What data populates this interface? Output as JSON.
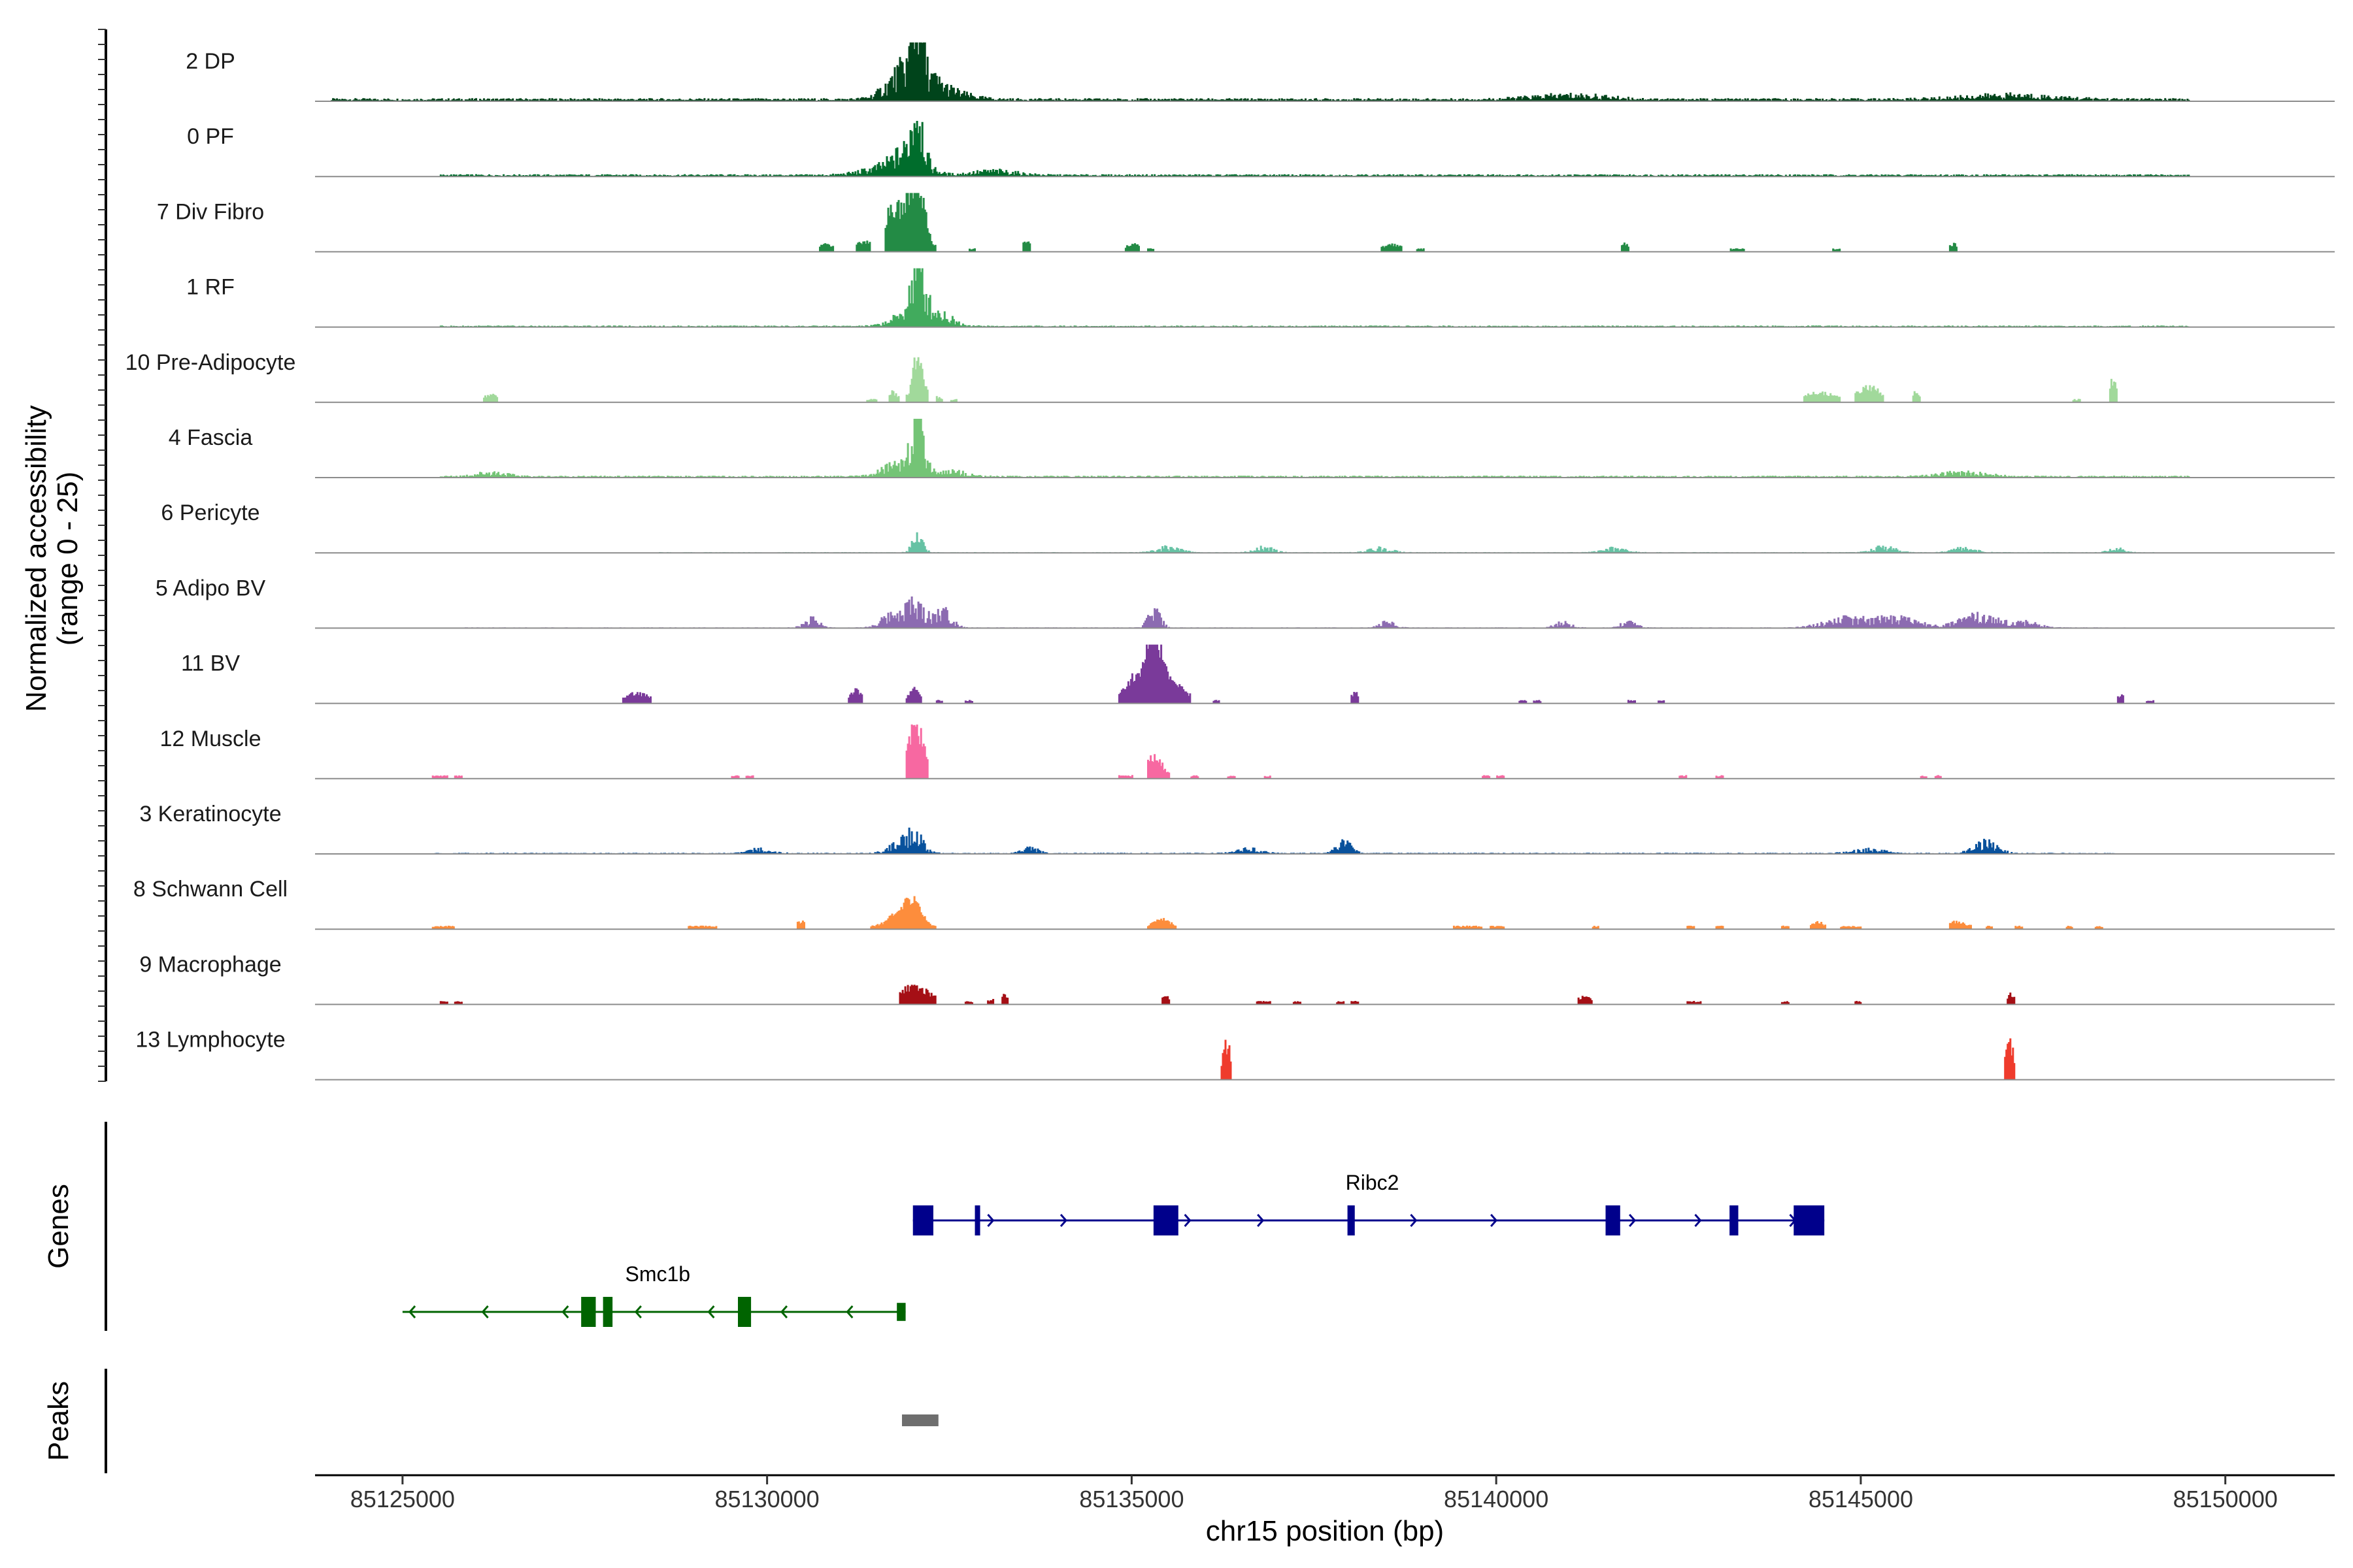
{
  "chart_data": {
    "type": "area",
    "title": "",
    "chromosome": "chr15",
    "xlabel": "chr15 position (bp)",
    "ylabel_line1": "Normalized accessibility",
    "ylabel_line2": "(range 0 - 25)",
    "ylim": [
      0,
      25
    ],
    "xlim": [
      85123800,
      85151500
    ],
    "x_ticks": [
      85125000,
      85130000,
      85135000,
      85140000,
      85145000,
      85150000
    ],
    "x_tick_labels": [
      "85125000",
      "85130000",
      "85135000",
      "85140000",
      "85145000",
      "85150000"
    ],
    "panel_titles": {
      "genes": "Genes",
      "peaks": "Peaks"
    },
    "series": [
      {
        "name": "2 DP",
        "color": "#00441b",
        "style": "continuous",
        "range": [
          85124000,
          85149500
        ],
        "baseline": 0.8,
        "peaks": [
          [
            85132050,
            25,
            60
          ],
          [
            85131950,
            12,
            250
          ],
          [
            85132400,
            3,
            300
          ],
          [
            85141000,
            1.5,
            500
          ],
          [
            85147000,
            1.5,
            600
          ]
        ]
      },
      {
        "name": "0 PF",
        "color": "#006d2c",
        "style": "continuous",
        "range": [
          85125500,
          85149500
        ],
        "baseline": 0.6,
        "peaks": [
          [
            85132050,
            20,
            70
          ],
          [
            85131950,
            8,
            200
          ],
          [
            85131600,
            2.5,
            300
          ],
          [
            85133100,
            1.5,
            300
          ]
        ]
      },
      {
        "name": "7 Div Fibro",
        "color": "#238b45",
        "style": "segments",
        "segments": [
          [
            85130700,
            85130900
          ],
          [
            85131200,
            85131400
          ],
          [
            85131600,
            85132300
          ],
          [
            85132750,
            85132850
          ],
          [
            85133500,
            85133600
          ],
          [
            85134900,
            85135100
          ],
          [
            85135200,
            85135300
          ],
          [
            85138400,
            85138700
          ],
          [
            85138900,
            85139000
          ],
          [
            85141700,
            85141800
          ],
          [
            85143200,
            85143400
          ],
          [
            85144600,
            85144700
          ],
          [
            85146200,
            85146300
          ]
        ],
        "peaks": [
          [
            85132050,
            24,
            100
          ],
          [
            85131850,
            12,
            150
          ],
          [
            85131650,
            9,
            120
          ],
          [
            85131300,
            3,
            100
          ],
          [
            85130800,
            2,
            120
          ],
          [
            85133550,
            3,
            60
          ],
          [
            85135000,
            2,
            80
          ],
          [
            85138550,
            2,
            100
          ],
          [
            85141750,
            2,
            60
          ],
          [
            85146250,
            2,
            60
          ]
        ]
      },
      {
        "name": "1 RF",
        "color": "#41ab5d",
        "style": "continuous",
        "range": [
          85125500,
          85149500
        ],
        "baseline": 0.4,
        "peaks": [
          [
            85132050,
            17,
            90
          ],
          [
            85132300,
            5,
            200
          ],
          [
            85131900,
            4,
            200
          ]
        ]
      },
      {
        "name": "10 Pre-Adipocyte",
        "color": "#a1d99b",
        "style": "segments",
        "segments": [
          [
            85126100,
            85126300
          ],
          [
            85131350,
            85131500
          ],
          [
            85131650,
            85131800
          ],
          [
            85131900,
            85132200
          ],
          [
            85132300,
            85132400
          ],
          [
            85132500,
            85132600
          ],
          [
            85144200,
            85144700
          ],
          [
            85144900,
            85145300
          ],
          [
            85145700,
            85145800
          ],
          [
            85147900,
            85148000
          ],
          [
            85148400,
            85148500
          ]
        ],
        "peaks": [
          [
            85126200,
            2,
            80
          ],
          [
            85132050,
            14,
            50
          ],
          [
            85132100,
            6,
            120
          ],
          [
            85131700,
            3,
            60
          ],
          [
            85145100,
            5,
            150
          ],
          [
            85144400,
            3,
            200
          ],
          [
            85145750,
            3,
            50
          ],
          [
            85148450,
            8,
            50
          ]
        ]
      },
      {
        "name": "4 Fascia",
        "color": "#74c476",
        "style": "continuous",
        "range": [
          85125500,
          85149500
        ],
        "baseline": 0.5,
        "peaks": [
          [
            85132050,
            20,
            90
          ],
          [
            85131800,
            5,
            200
          ],
          [
            85132500,
            2,
            200
          ],
          [
            85126200,
            1.5,
            200
          ],
          [
            85146400,
            1.5,
            300
          ]
        ]
      },
      {
        "name": "6 Pericyte",
        "color": "#66c2a4",
        "style": "continuous",
        "range": [
          85128500,
          85149000
        ],
        "baseline": 0.2,
        "peaks": [
          [
            85132050,
            6,
            70
          ],
          [
            85135500,
            2,
            150
          ],
          [
            85136800,
            2,
            120
          ],
          [
            85138400,
            1.5,
            150
          ],
          [
            85141600,
            1.5,
            150
          ],
          [
            85145300,
            2,
            150
          ],
          [
            85146400,
            1.5,
            150
          ],
          [
            85148500,
            1.5,
            100
          ]
        ]
      },
      {
        "name": "5 Adipo BV",
        "color": "#8c6bb1",
        "style": "continuous",
        "range": [
          85125800,
          85148800
        ],
        "baseline": 0.2,
        "peaks": [
          [
            85132000,
            8,
            150
          ],
          [
            85132400,
            6,
            120
          ],
          [
            85131700,
            4,
            150
          ],
          [
            85130600,
            3,
            100
          ],
          [
            85135300,
            6,
            80
          ],
          [
            85138500,
            2,
            100
          ],
          [
            85140900,
            2,
            100
          ],
          [
            85141800,
            2,
            100
          ],
          [
            85144800,
            3,
            300
          ],
          [
            85145500,
            3,
            300
          ],
          [
            85146600,
            4,
            250
          ],
          [
            85147200,
            2,
            200
          ]
        ]
      },
      {
        "name": "11 BV",
        "color": "#7a3a9a",
        "style": "segments",
        "segments": [
          [
            85128000,
            85128400
          ],
          [
            85131100,
            85131300
          ],
          [
            85131900,
            85132100
          ],
          [
            85132300,
            85132400
          ],
          [
            85132700,
            85132800
          ],
          [
            85134800,
            85135800
          ],
          [
            85136100,
            85136200
          ],
          [
            85138000,
            85138100
          ],
          [
            85140300,
            85140400
          ],
          [
            85140500,
            85140600
          ],
          [
            85141800,
            85141900
          ],
          [
            85142200,
            85142300
          ],
          [
            85148500,
            85148600
          ],
          [
            85148900,
            85149000
          ]
        ],
        "peaks": [
          [
            85128200,
            3,
            150
          ],
          [
            85131200,
            4,
            80
          ],
          [
            85132000,
            5,
            60
          ],
          [
            85135300,
            22,
            80
          ],
          [
            85135100,
            10,
            200
          ],
          [
            85135500,
            7,
            200
          ],
          [
            85138050,
            3,
            50
          ],
          [
            85148550,
            2,
            50
          ]
        ]
      },
      {
        "name": "12 Muscle",
        "color": "#f768a1",
        "style": "segments",
        "segments": [
          [
            85125400,
            85125600
          ],
          [
            85125700,
            85125800
          ],
          [
            85129500,
            85129600
          ],
          [
            85129700,
            85129800
          ],
          [
            85131900,
            85132200
          ],
          [
            85134800,
            85135000
          ],
          [
            85135200,
            85135500
          ],
          [
            85135800,
            85135900
          ],
          [
            85136300,
            85136400
          ],
          [
            85136800,
            85136900
          ],
          [
            85139800,
            85139900
          ],
          [
            85140000,
            85140100
          ],
          [
            85142500,
            85142600
          ],
          [
            85143000,
            85143100
          ],
          [
            85145800,
            85145900
          ],
          [
            85146000,
            85146100
          ]
        ],
        "peaks": [
          [
            85132050,
            15,
            100
          ],
          [
            85135300,
            8,
            100
          ],
          [
            85131950,
            8,
            100
          ]
        ]
      },
      {
        "name": "3 Keratinocyte",
        "color": "#08519c",
        "style": "continuous",
        "range": [
          85125400,
          85148500
        ],
        "baseline": 0.3,
        "peaks": [
          [
            85132000,
            6,
            120
          ],
          [
            85131800,
            3,
            150
          ],
          [
            85137900,
            4,
            100
          ],
          [
            85146700,
            4,
            150
          ],
          [
            85133600,
            2,
            100
          ],
          [
            85129900,
            1.5,
            150
          ],
          [
            85136600,
            1.5,
            150
          ],
          [
            85145100,
            1.5,
            200
          ]
        ]
      },
      {
        "name": "8 Schwann Cell",
        "color": "#fd8d3c",
        "style": "segments",
        "segments": [
          [
            85125400,
            85125700
          ],
          [
            85128900,
            85129300
          ],
          [
            85130400,
            85130500
          ],
          [
            85131400,
            85132300
          ],
          [
            85135200,
            85135600
          ],
          [
            85139400,
            85139800
          ],
          [
            85139900,
            85140100
          ],
          [
            85141300,
            85141400
          ],
          [
            85142600,
            85142700
          ],
          [
            85143000,
            85143100
          ],
          [
            85143900,
            85144000
          ],
          [
            85144300,
            85144500
          ],
          [
            85144700,
            85145000
          ],
          [
            85146200,
            85146500
          ],
          [
            85146700,
            85146800
          ],
          [
            85147100,
            85147200
          ],
          [
            85147800,
            85147900
          ],
          [
            85148200,
            85148300
          ]
        ],
        "peaks": [
          [
            85132000,
            10,
            100
          ],
          [
            85131800,
            5,
            150
          ],
          [
            85135400,
            3,
            100
          ],
          [
            85130450,
            2,
            60
          ],
          [
            85144400,
            2,
            60
          ],
          [
            85146300,
            2,
            100
          ]
        ]
      },
      {
        "name": "9 Macrophage",
        "color": "#a50f15",
        "style": "segments",
        "segments": [
          [
            85125500,
            85125600
          ],
          [
            85125700,
            85125800
          ],
          [
            85131800,
            85132300
          ],
          [
            85132700,
            85132800
          ],
          [
            85133000,
            85133100
          ],
          [
            85133200,
            85133300
          ],
          [
            85135400,
            85135500
          ],
          [
            85136700,
            85136900
          ],
          [
            85137200,
            85137300
          ],
          [
            85137800,
            85137900
          ],
          [
            85138000,
            85138100
          ],
          [
            85141100,
            85141300
          ],
          [
            85142600,
            85142800
          ],
          [
            85143900,
            85144000
          ],
          [
            85144900,
            85145000
          ],
          [
            85147000,
            85147100
          ]
        ],
        "peaks": [
          [
            85132000,
            6,
            200
          ],
          [
            85133200,
            3,
            80
          ],
          [
            85135450,
            2,
            50
          ],
          [
            85141200,
            2,
            80
          ],
          [
            85147050,
            3,
            50
          ]
        ]
      },
      {
        "name": "13 Lymphocyte",
        "color": "#ef3b2c",
        "style": "segments",
        "segments": [
          [
            85136220,
            85136360
          ],
          [
            85146960,
            85147100
          ]
        ],
        "peaks": [
          [
            85136290,
            13,
            60
          ],
          [
            85147030,
            13,
            60
          ]
        ]
      }
    ],
    "genes": [
      {
        "name": "Ribc2",
        "strand": "+",
        "color": "#00008b",
        "start": 85132000,
        "end": 85144500,
        "row": 0,
        "label_pos": 85138300,
        "exons": [
          [
            85132000,
            85132280,
            1
          ],
          [
            85132850,
            85132910,
            1
          ],
          [
            85135300,
            85135640,
            1
          ],
          [
            85137960,
            85138060,
            1
          ],
          [
            85141500,
            85141700,
            1
          ],
          [
            85143200,
            85143320,
            1
          ],
          [
            85144080,
            85144500,
            1
          ]
        ],
        "arrows": [
          85132100,
          85133100,
          85134100,
          85135800,
          85136800,
          85138900,
          85140000,
          85141900,
          85142800,
          85144100
        ]
      },
      {
        "name": "Smc1b",
        "strand": "-",
        "color": "#006400",
        "start": 85125000,
        "end": 85131900,
        "row": 1,
        "label_pos": 85128500,
        "exons": [
          [
            85127450,
            85127650,
            1
          ],
          [
            85127750,
            85127880,
            1
          ],
          [
            85129600,
            85129780,
            1
          ],
          [
            85131780,
            85131900,
            0.6
          ]
        ],
        "arrows": [
          85125100,
          85126100,
          85127200,
          85128200,
          85129200,
          85130200,
          85131100
        ]
      }
    ],
    "peaks_track": [
      [
        85131850,
        85132350
      ]
    ]
  }
}
